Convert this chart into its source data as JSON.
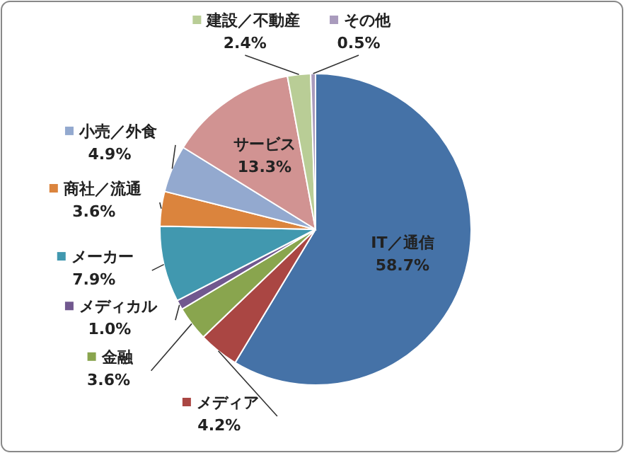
{
  "chart_data": {
    "type": "pie",
    "categories": [
      "IT／通信",
      "メディア",
      "金融",
      "メディカル",
      "メーカー",
      "商社／流通",
      "小売／外食",
      "サービス",
      "建設／不動産",
      "その他"
    ],
    "values": [
      58.7,
      4.2,
      3.6,
      1.0,
      7.9,
      3.6,
      4.9,
      13.3,
      2.4,
      0.5
    ],
    "colors": [
      "#4572a7",
      "#aa4643",
      "#89a54e",
      "#71588f",
      "#4198af",
      "#db843d",
      "#93a9cf",
      "#d19392",
      "#b9cd96",
      "#a99bbd"
    ],
    "value_labels": [
      "58.7%",
      "4.2%",
      "3.6%",
      "1.0%",
      "7.9%",
      "3.6%",
      "4.9%",
      "13.3%",
      "2.4%",
      "0.5%"
    ],
    "data_labels": true,
    "legend": "left"
  }
}
